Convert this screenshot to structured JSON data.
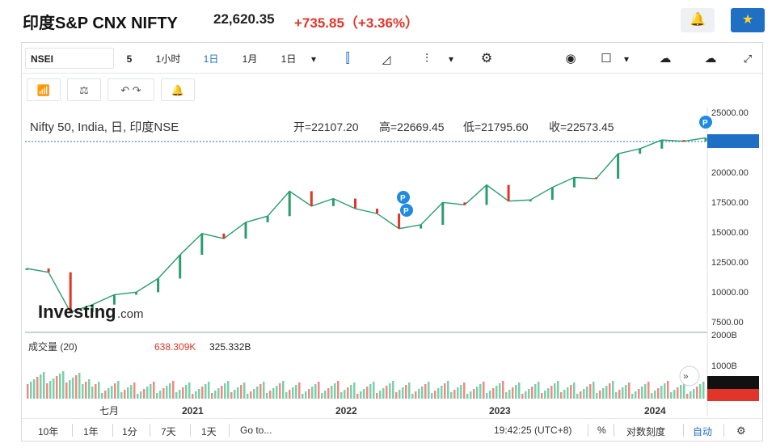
{
  "header": {
    "title": "印度S&P CNX NIFTY",
    "price": "22,620.35",
    "change": "+735.85（+3.36%）",
    "alert_icon": "bell-plus-icon",
    "star_icon": "star-icon",
    "accent_color": "#1f6fc5",
    "negative_color": "#e2352a"
  },
  "toolbar": {
    "symbol": "NSEI",
    "interval_5": "5",
    "interval_1h": "1小时",
    "interval_1d": "1日",
    "interval_1m": "1月",
    "interval_select": "1日",
    "dropdown": "▾"
  },
  "legend": {
    "name": "Nifty 50, India, 日, 印度NSE",
    "open": "开=22107.20",
    "high": "高=22669.45",
    "low": "低=21795.60",
    "close": "收=22573.45"
  },
  "volume": {
    "label": "成交量 (20)",
    "v1": "638.309K",
    "v2": "325.332B"
  },
  "watermark": {
    "brand": "Investing",
    "suffix": ".com"
  },
  "bottom": {
    "r10y": "10年",
    "r1y": "1年",
    "r1m": "1分",
    "r7d": "7天",
    "r1d": "1天",
    "goto": "Go to...",
    "time": "19:42:25 (UTC+8)",
    "pct": "%",
    "log": "对数刻度",
    "auto": "自动"
  },
  "chart_data": {
    "type": "line",
    "series": [
      {
        "values_style": "candlestick-approx",
        "x": [
          "2020-01",
          "2020-03",
          "2020-04",
          "2020-06",
          "2020-07",
          "2020-09",
          "2020-10",
          "2020-12",
          "2021-02",
          "2021-04",
          "2021-06",
          "2021-08",
          "2021-10",
          "2021-12",
          "2022-01",
          "2022-03",
          "2022-04",
          "2022-06",
          "2022-07",
          "2022-09",
          "2022-10",
          "2022-12",
          "2023-02",
          "2023-04",
          "2023-06",
          "2023-08",
          "2023-10",
          "2023-12",
          "2024-01",
          "2024-03",
          "2024-04",
          "2024-05"
        ],
        "values": [
          12100,
          11800,
          8600,
          9200,
          10000,
          10200,
          11300,
          13200,
          14900,
          14500,
          15800,
          16300,
          18300,
          17100,
          17700,
          16900,
          16500,
          15300,
          15600,
          17400,
          17200,
          18800,
          17500,
          17600,
          18600,
          19400,
          19300,
          21300,
          21700,
          22400,
          22300,
          22573
        ]
      }
    ],
    "x_tick_labels": [
      "七月",
      "2021",
      "2022",
      "2023",
      "2024"
    ],
    "y_tick_labels": [
      "25000.00",
      "22573.45",
      "20000.00",
      "17500.00",
      "15000.00",
      "12500.00",
      "10000.00",
      "7500.00"
    ],
    "ylim": [
      7500,
      25000
    ],
    "volume_tick_labels": [
      "2000B",
      "1000B",
      "325.332B",
      "638.309K"
    ],
    "price_line_color": "#2a9d6e",
    "down_color": "#e2352a",
    "last_price_color": "#1f6fc5",
    "grid": false
  }
}
